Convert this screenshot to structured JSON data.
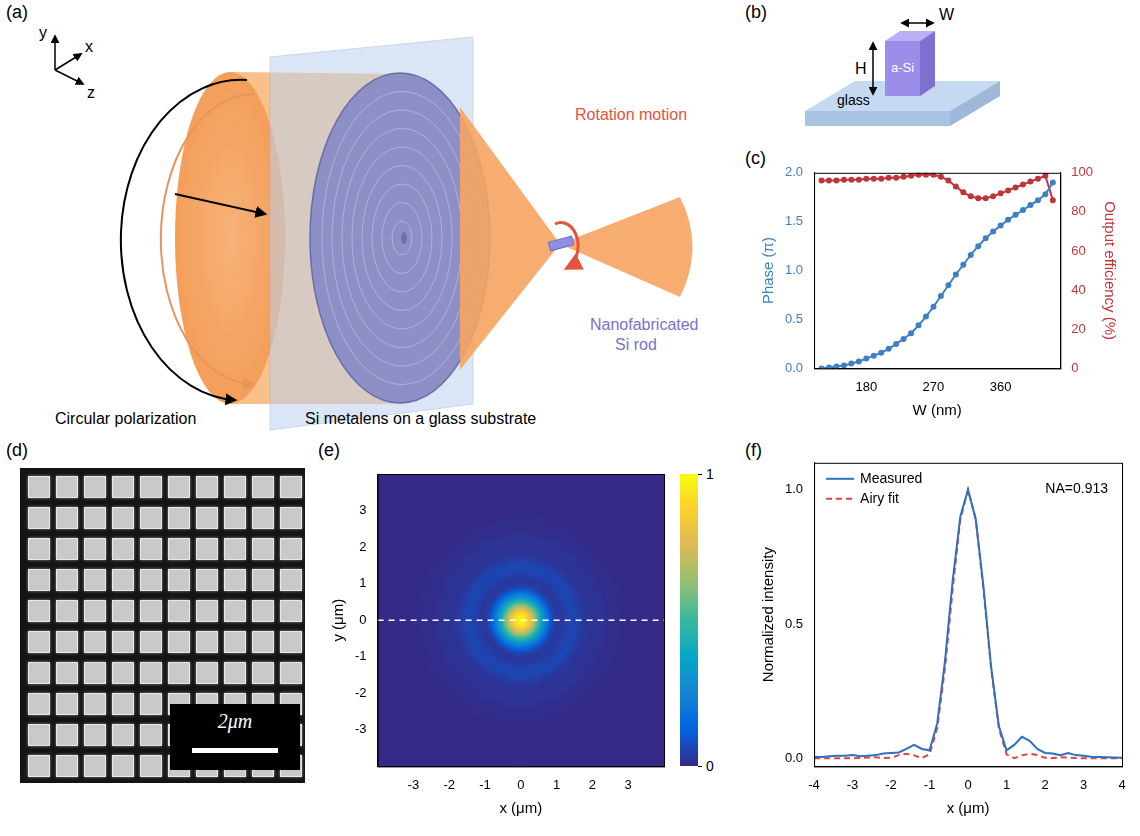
{
  "diagram_a": {
    "label": "(a)",
    "axis_labels": {
      "x": "x",
      "y": "y",
      "z": "z"
    },
    "texts": {
      "beam": "Circular polarization",
      "lens": "Si metalens on a glass substrate",
      "motion": "Rotation motion",
      "rod": [
        "Nanofabricated",
        "Si rod"
      ]
    }
  },
  "diagram_b": {
    "label": "(b)",
    "width": "W",
    "height": "H",
    "pillar": "a-Si",
    "substrate": "glass"
  },
  "image_d": {
    "label": "(d)",
    "scale_bar": "2μm"
  },
  "chart_data": [
    {
      "panel": "(c)",
      "type": "line",
      "x_label": "W (nm)",
      "y_label": "Phase (π)",
      "y2_label": "Output efficiency (%)",
      "xlim": [
        110,
        440
      ],
      "xticks": [
        180,
        270,
        360
      ],
      "ylim": [
        0,
        2
      ],
      "yticks": [
        {
          "value": 0,
          "label": "0.0"
        },
        0.5,
        {
          "value": 1,
          "label": "1.0"
        },
        1.5,
        {
          "value": 2,
          "label": "2.0"
        }
      ],
      "y2lim": [
        0,
        100
      ],
      "y2ticks": [
        0,
        20,
        40,
        60,
        80,
        100
      ],
      "marker": "circle",
      "grid": false,
      "x": [
        120,
        130,
        140,
        150,
        160,
        170,
        180,
        190,
        200,
        210,
        220,
        230,
        240,
        250,
        260,
        270,
        280,
        290,
        300,
        310,
        320,
        330,
        340,
        350,
        360,
        370,
        380,
        390,
        400,
        410,
        420,
        430
      ],
      "series": [
        {
          "color": "#3f7fc4",
          "axis": "y",
          "values": [
            0,
            0.01,
            0.02,
            0.03,
            0.05,
            0.07,
            0.1,
            0.13,
            0.16,
            0.2,
            0.25,
            0.3,
            0.36,
            0.44,
            0.53,
            0.63,
            0.74,
            0.85,
            0.96,
            1.06,
            1.16,
            1.25,
            1.33,
            1.4,
            1.46,
            1.52,
            1.57,
            1.62,
            1.67,
            1.72,
            1.78,
            1.9
          ]
        },
        {
          "color": "#c0353a",
          "axis": "y2",
          "values": [
            96,
            96,
            96,
            96.5,
            96.5,
            96.5,
            97,
            97,
            97,
            97.5,
            97.5,
            98,
            98.5,
            99,
            99,
            99,
            98,
            96,
            93,
            90,
            88,
            87,
            87,
            88,
            89.5,
            91,
            92.5,
            94,
            95.5,
            97,
            98.5,
            86
          ]
        }
      ]
    },
    {
      "panel": "(e)",
      "type": "heatmap",
      "x_label": "x (μm)",
      "y_label": "y (μm)",
      "xlim": [
        -4,
        4
      ],
      "xticks": [
        -3,
        -2,
        -1,
        0,
        1,
        2,
        3
      ],
      "ylim": [
        -4,
        4
      ],
      "yticks": [
        -3,
        -2,
        -1,
        0,
        1,
        2,
        3
      ],
      "center": [
        0,
        0
      ],
      "cut_y": 0,
      "radius": [
        0,
        0.1,
        0.2,
        0.3,
        0.4,
        0.5,
        0.6,
        0.7,
        0.8,
        0.9,
        1,
        1.1,
        1.2,
        1.3,
        1.4,
        1.5,
        1.6,
        1.7,
        1.8,
        1.9,
        2,
        2.1,
        2.2,
        2.3,
        2.4,
        2.5,
        2.6,
        2.7,
        2.8,
        2.9,
        3,
        3.1,
        3.2,
        3.3,
        3.4,
        3.5,
        3.6,
        3.7,
        3.8,
        3.9,
        4
      ],
      "intensity": [
        1,
        0.97,
        0.89,
        0.77,
        0.63,
        0.48,
        0.34,
        0.22,
        0.12,
        0.06,
        0.03,
        0.03,
        0.04,
        0.05,
        0.06,
        0.06,
        0.05,
        0.035,
        0.025,
        0.02,
        0.02,
        0.02,
        0.02,
        0.015,
        0.01,
        0.01,
        0.008,
        0.006,
        0.005,
        0.004,
        0.003,
        0.002,
        0.002,
        0.001,
        0.001,
        0,
        0,
        0,
        0,
        0,
        0
      ],
      "colorbar": {
        "range": [
          0,
          1
        ],
        "ticks": [
          0,
          1
        ]
      }
    },
    {
      "panel": "(f)",
      "type": "line",
      "x_label": "x (μm)",
      "y_label": "Normalized intensity",
      "xlim": [
        -4,
        4
      ],
      "xticks": [
        -4,
        -3,
        -2,
        -1,
        0,
        1,
        2,
        3,
        4
      ],
      "ylim": [
        -0.03,
        1.1
      ],
      "yticks": [
        {
          "value": 0,
          "label": "0.0"
        },
        0.5,
        {
          "value": 1,
          "label": "1.0"
        }
      ],
      "legend": "top-left",
      "annotation": "NA=0.913",
      "grid": false,
      "x": [
        -4,
        -3.8,
        -3.6,
        -3.4,
        -3.2,
        -3,
        -2.8,
        -2.6,
        -2.4,
        -2.2,
        -2,
        -1.8,
        -1.6,
        -1.4,
        -1.2,
        -1,
        -0.8,
        -0.6,
        -0.4,
        -0.2,
        0,
        0.2,
        0.4,
        0.6,
        0.8,
        1,
        1.2,
        1.4,
        1.6,
        1.8,
        2,
        2.2,
        2.4,
        2.6,
        2.8,
        3,
        3.2,
        3.4,
        3.6,
        3.8,
        4
      ],
      "series": [
        {
          "name": "Measured",
          "color": "#2f6fc0",
          "line_style": "solid",
          "values": [
            0.005,
            0.005,
            0.008,
            0.01,
            0.01,
            0.012,
            0.008,
            0.01,
            0.012,
            0.018,
            0.02,
            0.022,
            0.035,
            0.05,
            0.035,
            0.03,
            0.13,
            0.36,
            0.66,
            0.9,
            1,
            0.89,
            0.64,
            0.34,
            0.12,
            0.03,
            0.05,
            0.08,
            0.065,
            0.035,
            0.02,
            0.018,
            0.012,
            0.02,
            0.012,
            0.01,
            0.006,
            0.005,
            0.004,
            0.003,
            0.002
          ]
        },
        {
          "name": "Airy fit",
          "color": "#e0443e",
          "line_style": "dashed",
          "values": [
            0,
            0,
            0,
            0,
            0,
            0,
            0.001,
            0.003,
            0.004,
            0.001,
            0.002,
            0.012,
            0.017,
            0.011,
            0.001,
            0.015,
            0.114,
            0.335,
            0.63,
            0.89,
            1,
            0.89,
            0.63,
            0.335,
            0.114,
            0.015,
            0.001,
            0.011,
            0.017,
            0.012,
            0.002,
            0.001,
            0.004,
            0.003,
            0.001,
            0,
            0,
            0,
            0,
            0,
            0
          ]
        }
      ]
    }
  ]
}
